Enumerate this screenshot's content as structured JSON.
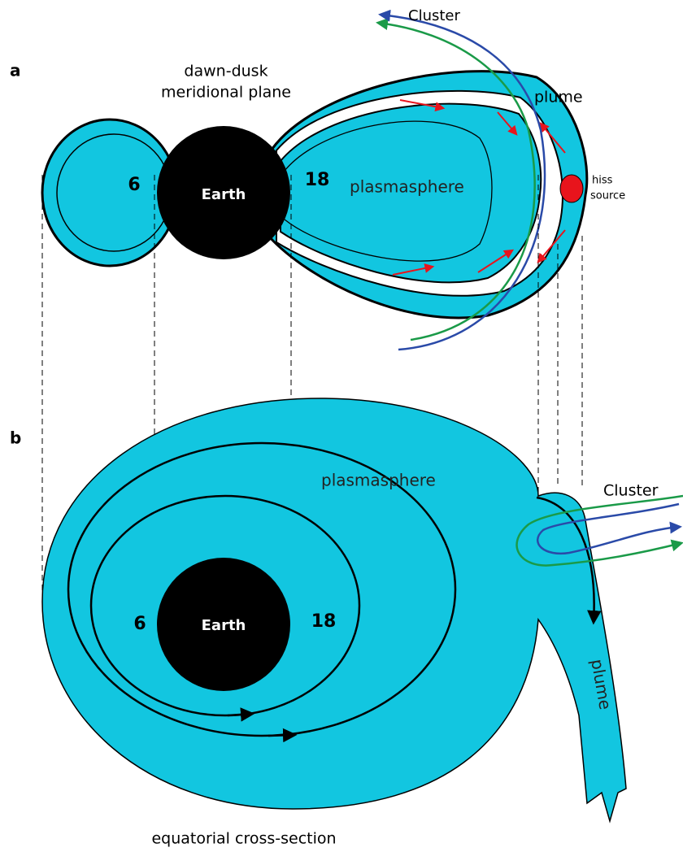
{
  "panel_a": {
    "label": "a",
    "title": [
      "dawn-dusk",
      "meridional plane"
    ],
    "cluster": "Cluster",
    "plume": "plume",
    "left_l": "6",
    "earth": "Earth",
    "right_l": "18",
    "plasmasphere": "plasmasphere",
    "hiss": [
      "hiss",
      "source"
    ]
  },
  "panel_b": {
    "label": "b",
    "plasmasphere": "plasmasphere",
    "cluster": "Cluster",
    "left_l": "6",
    "earth": "Earth",
    "right_l": "18",
    "plume": "plume",
    "caption": "equatorial cross-section"
  }
}
